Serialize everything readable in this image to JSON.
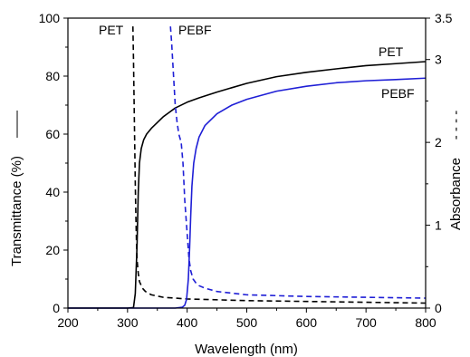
{
  "chart_data": {
    "type": "line",
    "xlabel": "Wavelength (nm)",
    "ylabel_left": "Transmittance (%)",
    "ylabel_right": "Absorbance",
    "left_axis_marker": "——",
    "right_axis_marker": "- - - -",
    "xlim": [
      200,
      800
    ],
    "ylim_left": [
      0,
      100
    ],
    "ylim_right": [
      0,
      3.5
    ],
    "x_ticks": [
      200,
      300,
      400,
      500,
      600,
      700,
      800
    ],
    "y_left_ticks": [
      0,
      20,
      40,
      60,
      80,
      100
    ],
    "y_right_ticks": [
      0,
      1,
      2,
      3,
      3.5
    ],
    "grid": false,
    "legend": "none",
    "annotations": [
      "PET",
      "PEBF",
      "PET",
      "PEBF"
    ],
    "colors": {
      "PET": "#000000",
      "PEBF": "#1f1fd6"
    },
    "series": [
      {
        "name": "PET",
        "quantity": "transmittance",
        "axis": "left",
        "style": "solid",
        "color": "#000000",
        "x": [
          200,
          300,
          310,
          313,
          316,
          318,
          320,
          323,
          327,
          332,
          340,
          350,
          360,
          370,
          380,
          400,
          420,
          450,
          500,
          550,
          600,
          650,
          700,
          750,
          800
        ],
        "y": [
          0,
          0,
          0.2,
          5,
          22,
          40,
          50,
          55,
          58,
          60,
          62,
          64,
          66,
          67.5,
          69,
          71,
          72.5,
          74.5,
          77.5,
          79.8,
          81.3,
          82.5,
          83.6,
          84.3,
          85
        ]
      },
      {
        "name": "PET",
        "quantity": "absorbance",
        "axis": "right",
        "style": "dashed",
        "color": "#000000",
        "x": [
          309,
          310,
          311,
          312,
          313,
          314,
          315,
          316,
          318,
          320,
          325,
          330,
          340,
          360,
          400,
          500,
          600,
          700,
          800
        ],
        "y": [
          3.4,
          3.0,
          2.5,
          2.0,
          1.5,
          1.1,
          0.8,
          0.58,
          0.42,
          0.32,
          0.24,
          0.2,
          0.16,
          0.13,
          0.11,
          0.09,
          0.08,
          0.07,
          0.06
        ]
      },
      {
        "name": "PEBF",
        "quantity": "transmittance",
        "axis": "left",
        "style": "solid",
        "color": "#1f1fd6",
        "x": [
          200,
          380,
          392,
          396,
          399,
          402,
          404,
          406,
          408,
          411,
          415,
          420,
          430,
          450,
          475,
          500,
          550,
          600,
          650,
          700,
          750,
          800
        ],
        "y": [
          0,
          0,
          0.3,
          1,
          3,
          10,
          20,
          32,
          42,
          50,
          55,
          59,
          63,
          67,
          70,
          72,
          74.8,
          76.5,
          77.7,
          78.4,
          78.8,
          79.3
        ]
      },
      {
        "name": "PEBF",
        "quantity": "absorbance",
        "axis": "right",
        "style": "dashed",
        "color": "#1f1fd6",
        "x": [
          372,
          374,
          376,
          378,
          380,
          383,
          386,
          390,
          393,
          396,
          400,
          403,
          406,
          410,
          415,
          420,
          430,
          450,
          500,
          550,
          600,
          700,
          800
        ],
        "y": [
          3.4,
          3.2,
          2.95,
          2.7,
          2.45,
          2.25,
          2.1,
          2.0,
          1.75,
          1.3,
          0.9,
          0.6,
          0.45,
          0.35,
          0.3,
          0.27,
          0.24,
          0.2,
          0.16,
          0.15,
          0.14,
          0.13,
          0.12
        ]
      }
    ]
  }
}
